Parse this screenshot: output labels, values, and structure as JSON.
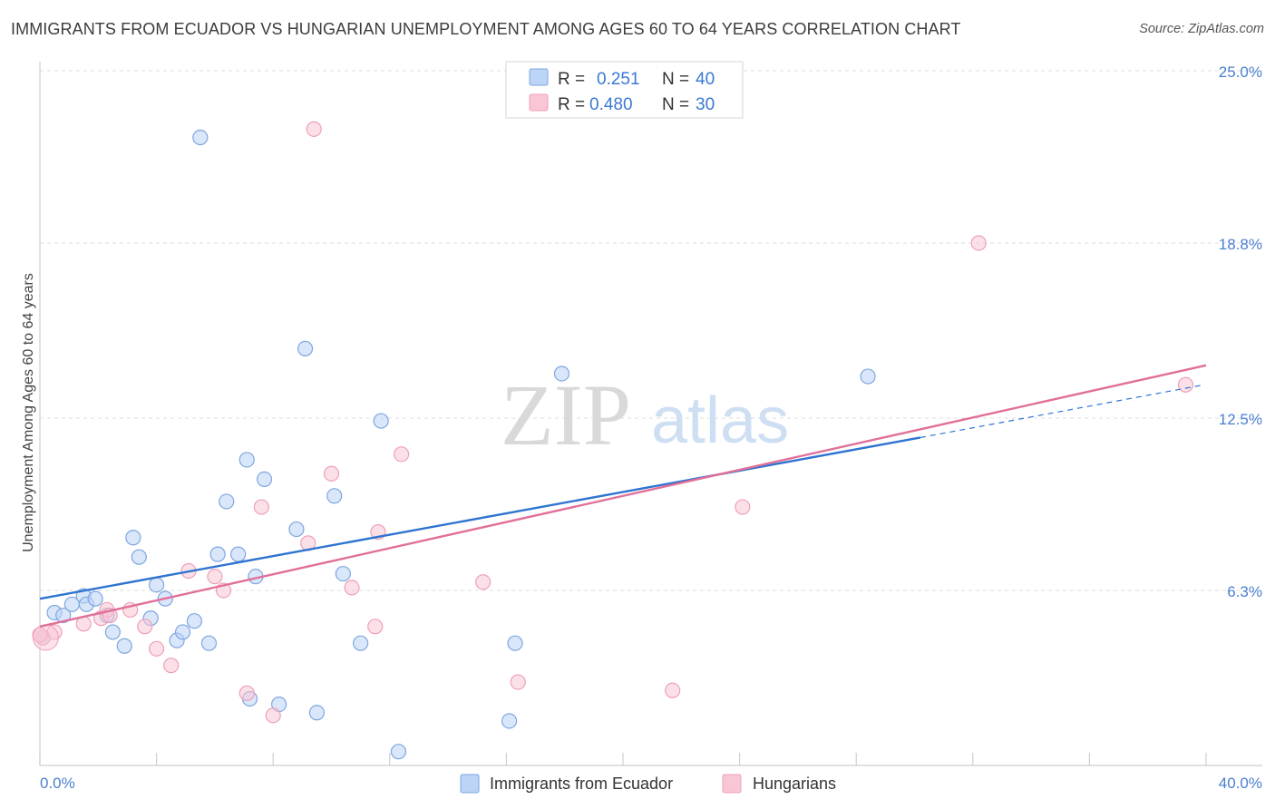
{
  "title": "IMMIGRANTS FROM ECUADOR VS HUNGARIAN UNEMPLOYMENT AMONG AGES 60 TO 64 YEARS CORRELATION CHART",
  "source": "Source: ZipAtlas.com",
  "watermark": {
    "zip": "ZIP",
    "atlas": "atlas"
  },
  "colors": {
    "blue_fill": "#bcd4f5",
    "blue_stroke": "#7ea6e0",
    "blue_line": "#2f74d0",
    "pink_fill": "#f9c6d6",
    "pink_stroke": "#eda0b8",
    "pink_line": "#e0709a",
    "tick_text": "#4a7fd0",
    "grid": "#dddddd"
  },
  "legend": {
    "rows": [
      {
        "r_label": "R =",
        "r_value": "0.251",
        "n_label": "N =",
        "n_value": "40"
      },
      {
        "r_label": "R =",
        "r_value": "0.480",
        "n_label": "N =",
        "n_value": "30"
      }
    ]
  },
  "chart_data": {
    "type": "scatter",
    "title": "IMMIGRANTS FROM ECUADOR VS HUNGARIAN UNEMPLOYMENT AMONG AGES 60 TO 64 YEARS CORRELATION CHART",
    "xlabel": "",
    "ylabel": "Unemployment Among Ages 60 to 64 years",
    "xlim": [
      0,
      40
    ],
    "ylim": [
      0,
      25
    ],
    "x_tick_labels": [
      "0.0%",
      "40.0%"
    ],
    "y_ticks": [
      6.3,
      12.5,
      18.8,
      25.0
    ],
    "y_tick_labels": [
      "6.3%",
      "12.5%",
      "18.8%",
      "25.0%"
    ],
    "grid": true,
    "legend_position": "top-center",
    "series": [
      {
        "name": "Immigrants from Ecuador",
        "color": "blue",
        "r": "0.251",
        "n": "40",
        "trend": {
          "x0": 0,
          "y0": 6.0,
          "x1": 30.2,
          "y1": 11.8,
          "dash_to_x": 40,
          "dash_to_y": 13.7
        },
        "points": [
          [
            0.1,
            4.6
          ],
          [
            0.5,
            5.5
          ],
          [
            0.8,
            5.4
          ],
          [
            1.1,
            5.8
          ],
          [
            1.5,
            6.1
          ],
          [
            1.6,
            5.8
          ],
          [
            1.9,
            6.0
          ],
          [
            2.3,
            5.4
          ],
          [
            2.5,
            4.8
          ],
          [
            2.9,
            4.3
          ],
          [
            3.2,
            8.2
          ],
          [
            3.4,
            7.5
          ],
          [
            3.8,
            5.3
          ],
          [
            4.0,
            6.5
          ],
          [
            4.3,
            6.0
          ],
          [
            4.7,
            4.5
          ],
          [
            4.9,
            4.8
          ],
          [
            5.3,
            5.2
          ],
          [
            5.5,
            22.6
          ],
          [
            5.8,
            4.4
          ],
          [
            6.1,
            7.6
          ],
          [
            6.4,
            9.5
          ],
          [
            6.8,
            7.6
          ],
          [
            7.1,
            11.0
          ],
          [
            7.2,
            2.4
          ],
          [
            7.4,
            6.8
          ],
          [
            7.7,
            10.3
          ],
          [
            8.2,
            2.2
          ],
          [
            8.8,
            8.5
          ],
          [
            9.1,
            15.0
          ],
          [
            9.5,
            1.9
          ],
          [
            10.1,
            9.7
          ],
          [
            10.4,
            6.9
          ],
          [
            11.0,
            4.4
          ],
          [
            11.7,
            12.4
          ],
          [
            12.3,
            0.5
          ],
          [
            16.1,
            1.6
          ],
          [
            16.3,
            4.4
          ],
          [
            17.9,
            14.1
          ],
          [
            28.4,
            14.0
          ]
        ]
      },
      {
        "name": "Hungarians",
        "color": "pink",
        "r": "0.480",
        "n": "30",
        "trend": {
          "x0": 0,
          "y0": 5.0,
          "x1": 40,
          "y1": 14.4
        },
        "points": [
          [
            0.1,
            4.6
          ],
          [
            0.5,
            4.8
          ],
          [
            1.5,
            5.1
          ],
          [
            2.1,
            5.3
          ],
          [
            2.3,
            5.6
          ],
          [
            3.1,
            5.6
          ],
          [
            3.6,
            5.0
          ],
          [
            4.0,
            4.2
          ],
          [
            4.5,
            3.6
          ],
          [
            5.1,
            7.0
          ],
          [
            6.0,
            6.8
          ],
          [
            6.3,
            6.3
          ],
          [
            7.1,
            2.6
          ],
          [
            7.6,
            9.3
          ],
          [
            8.0,
            1.8
          ],
          [
            9.2,
            8.0
          ],
          [
            9.4,
            22.9
          ],
          [
            10.0,
            10.5
          ],
          [
            10.7,
            6.4
          ],
          [
            11.5,
            5.0
          ],
          [
            11.6,
            8.4
          ],
          [
            12.4,
            11.2
          ],
          [
            15.2,
            6.6
          ],
          [
            16.4,
            3.0
          ],
          [
            21.7,
            2.7
          ],
          [
            24.1,
            9.3
          ],
          [
            32.2,
            18.8
          ],
          [
            39.3,
            13.7
          ],
          [
            0.0,
            4.7
          ],
          [
            2.4,
            5.4
          ]
        ]
      }
    ]
  },
  "bottom_legend": [
    {
      "label": "Immigrants from Ecuador",
      "color": "blue"
    },
    {
      "label": "Hungarians",
      "color": "pink"
    }
  ]
}
